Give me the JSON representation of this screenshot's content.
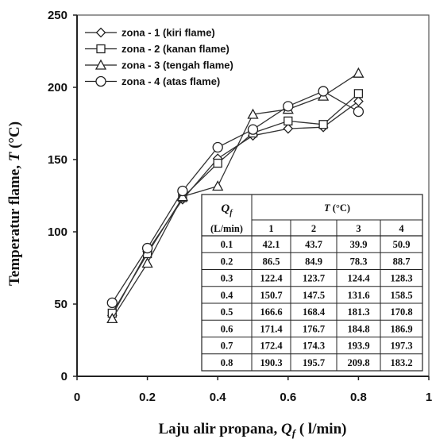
{
  "chart_data": {
    "type": "line",
    "xlabel_main": "Laju alir propana, ",
    "xlabel_sym": "Q",
    "xlabel_sub": "f",
    "xlabel_unit": " ( l/min)",
    "ylabel_main": "Temperatur   flame, ",
    "ylabel_sym": "T",
    "ylabel_unit": " (°C)",
    "xlim": [
      0,
      1
    ],
    "ylim": [
      0,
      250
    ],
    "xticks": [
      "0",
      "0.2",
      "0.4",
      "0.6",
      "0.8",
      "1"
    ],
    "yticks": [
      "0",
      "50",
      "100",
      "150",
      "200",
      "250"
    ],
    "x": [
      0.1,
      0.2,
      0.3,
      0.4,
      0.5,
      0.6,
      0.7,
      0.8
    ],
    "series": [
      {
        "name": "zona - 1 (kiri flame)",
        "marker": "diamond",
        "values": [
          42.1,
          86.5,
          122.4,
          150.7,
          166.6,
          171.4,
          172.4,
          190.3
        ]
      },
      {
        "name": "zona - 2 (kanan flame)",
        "marker": "square",
        "values": [
          43.7,
          84.9,
          123.7,
          147.5,
          168.4,
          176.7,
          174.3,
          195.7
        ]
      },
      {
        "name": "zona - 3 (tengah flame)",
        "marker": "triangle",
        "values": [
          39.9,
          78.3,
          124.4,
          131.6,
          181.3,
          184.8,
          193.9,
          209.8
        ]
      },
      {
        "name": "zona - 4 (atas flame)",
        "marker": "circle",
        "values": [
          50.9,
          88.7,
          128.3,
          158.5,
          170.8,
          186.9,
          197.3,
          183.2
        ]
      }
    ],
    "legend_position": "top-left",
    "table": {
      "head_sym": "Q",
      "head_sub": "f",
      "head_unit": "(L/min)",
      "group_sym": "T",
      "group_unit": " (°C)",
      "columns": [
        "1",
        "2",
        "3",
        "4"
      ],
      "rows": [
        [
          "0.1",
          "42.1",
          "43.7",
          "39.9",
          "50.9"
        ],
        [
          "0.2",
          "86.5",
          "84.9",
          "78.3",
          "88.7"
        ],
        [
          "0.3",
          "122.4",
          "123.7",
          "124.4",
          "128.3"
        ],
        [
          "0.4",
          "150.7",
          "147.5",
          "131.6",
          "158.5"
        ],
        [
          "0.5",
          "166.6",
          "168.4",
          "181.3",
          "170.8"
        ],
        [
          "0.6",
          "171.4",
          "176.7",
          "184.8",
          "186.9"
        ],
        [
          "0.7",
          "172.4",
          "174.3",
          "193.9",
          "197.3"
        ],
        [
          "0.8",
          "190.3",
          "195.7",
          "209.8",
          "183.2"
        ]
      ]
    }
  }
}
